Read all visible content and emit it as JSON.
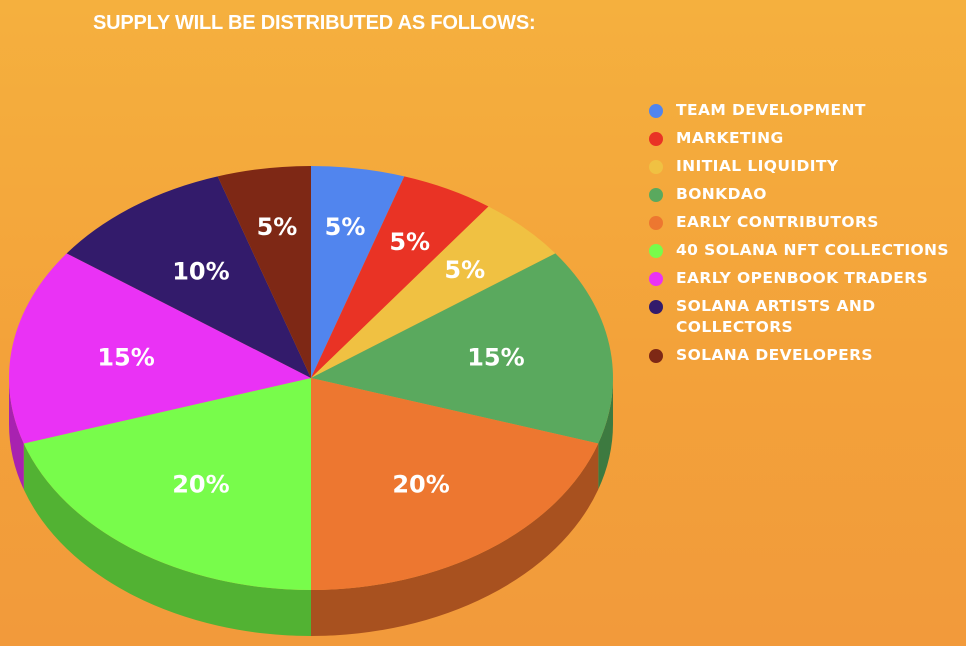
{
  "title": "SUPPLY WILL BE DISTRIBUTED AS FOLLOWS:",
  "chart_data": {
    "type": "pie",
    "title": "SUPPLY WILL BE DISTRIBUTED AS FOLLOWS:",
    "unit": "%",
    "legend_position": "right",
    "slices": [
      {
        "label": "TEAM DEVELOPMENT",
        "value": 5,
        "display": "5%",
        "color": "#5185ee",
        "side": "#3a64b8"
      },
      {
        "label": "MARKETING",
        "value": 5,
        "display": "5%",
        "color": "#e93325",
        "side": "#a8231a"
      },
      {
        "label": "INITIAL LIQUIDITY",
        "value": 5,
        "display": "5%",
        "color": "#f0c142",
        "side": "#b68f2c"
      },
      {
        "label": "BONKDAO",
        "value": 15,
        "display": "15%",
        "color": "#5aa95e",
        "side": "#3d7a40"
      },
      {
        "label": "EARLY CONTRIBUTORS",
        "value": 20,
        "display": "20%",
        "color": "#ed7730",
        "side": "#a8511f"
      },
      {
        "label": "40 SOLANA NFT COLLECTIONS",
        "value": 20,
        "display": "20%",
        "color": "#78fc4b",
        "side": "#52b233"
      },
      {
        "label": "EARLY OPENBOOK TRADERS",
        "value": 15,
        "display": "15%",
        "color": "#ea32f5",
        "side": "#a822b0"
      },
      {
        "label": "SOLANA ARTISTS AND COLLECTORS",
        "value": 10,
        "display": "10%",
        "color": "#331b6b",
        "side": "#22124a"
      },
      {
        "label": "SOLANA DEVELOPERS",
        "value": 5,
        "display": "5%",
        "color": "#7e2815",
        "side": "#561b0e"
      }
    ]
  }
}
